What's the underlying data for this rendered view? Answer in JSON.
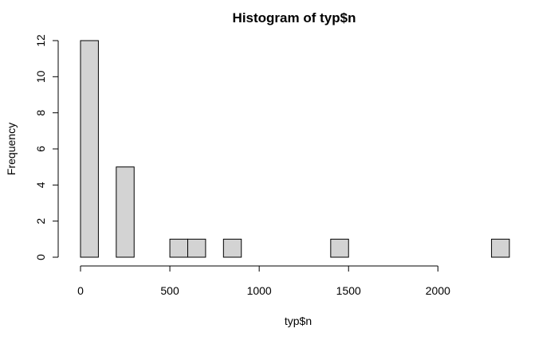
{
  "chart_data": {
    "type": "bar",
    "title": "Histogram of typ$n",
    "xlabel": "typ$n",
    "ylabel": "Frequency",
    "bin_width": 100,
    "bins": [
      {
        "start": 0,
        "end": 100,
        "count": 12
      },
      {
        "start": 100,
        "end": 200,
        "count": 0
      },
      {
        "start": 200,
        "end": 300,
        "count": 5
      },
      {
        "start": 300,
        "end": 400,
        "count": 0
      },
      {
        "start": 400,
        "end": 500,
        "count": 0
      },
      {
        "start": 500,
        "end": 600,
        "count": 1
      },
      {
        "start": 600,
        "end": 700,
        "count": 1
      },
      {
        "start": 700,
        "end": 800,
        "count": 0
      },
      {
        "start": 800,
        "end": 900,
        "count": 1
      },
      {
        "start": 900,
        "end": 1000,
        "count": 0
      },
      {
        "start": 1000,
        "end": 1100,
        "count": 0
      },
      {
        "start": 1100,
        "end": 1200,
        "count": 0
      },
      {
        "start": 1200,
        "end": 1300,
        "count": 0
      },
      {
        "start": 1300,
        "end": 1400,
        "count": 0
      },
      {
        "start": 1400,
        "end": 1500,
        "count": 1
      },
      {
        "start": 1500,
        "end": 1600,
        "count": 0
      },
      {
        "start": 1600,
        "end": 1700,
        "count": 0
      },
      {
        "start": 1700,
        "end": 1800,
        "count": 0
      },
      {
        "start": 1800,
        "end": 1900,
        "count": 0
      },
      {
        "start": 1900,
        "end": 2000,
        "count": 0
      },
      {
        "start": 2000,
        "end": 2100,
        "count": 0
      },
      {
        "start": 2100,
        "end": 2200,
        "count": 0
      },
      {
        "start": 2200,
        "end": 2300,
        "count": 0
      },
      {
        "start": 2300,
        "end": 2400,
        "count": 1
      }
    ],
    "x_ticks": [
      0,
      500,
      1000,
      1500,
      2000
    ],
    "x_tick_labels": [
      "0",
      "500",
      "1000",
      "1500",
      "2000"
    ],
    "y_ticks": [
      0,
      2,
      4,
      6,
      8,
      10,
      12
    ],
    "y_tick_labels": [
      "0",
      "2",
      "4",
      "6",
      "8",
      "10",
      "12"
    ],
    "xlim": [
      0,
      2400
    ],
    "ylim": [
      0,
      12
    ],
    "grid": false,
    "bar_color": "#d3d3d3",
    "bar_edge_color": "#000000"
  }
}
